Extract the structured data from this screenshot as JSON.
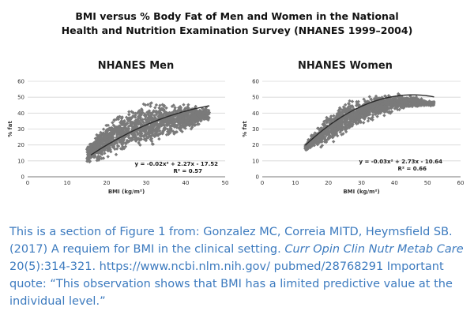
{
  "figure": {
    "title_line1": "BMI versus % Body Fat of Men and Women in the National",
    "title_line2": "Health and Nutrition Examination Survey (NHANES 1999–2004)"
  },
  "colors": {
    "scatter": "#7a7a7a",
    "curve": "#2a2a2a",
    "caption": "#3d7bbf"
  },
  "chart_data": [
    {
      "type": "scatter",
      "title": "NHANES Men",
      "xlabel": "BMI (kg/m²)",
      "ylabel": "% fat",
      "xlim": [
        0,
        50
      ],
      "ylim": [
        0,
        60
      ],
      "xticks": [
        "0",
        "10",
        "20",
        "30",
        "40",
        "50"
      ],
      "yticks": [
        "0",
        "10",
        "20",
        "30",
        "40",
        "50",
        "60"
      ],
      "point_cloud": {
        "x_range": [
          15,
          46
        ],
        "lower_envelope": [
          [
            15,
            10
          ],
          [
            20,
            15
          ],
          [
            25,
            21
          ],
          [
            30,
            24
          ],
          [
            35,
            28
          ],
          [
            40,
            32
          ],
          [
            45,
            36
          ]
        ],
        "upper_envelope": [
          [
            15,
            18
          ],
          [
            20,
            30
          ],
          [
            25,
            37
          ],
          [
            30,
            41
          ],
          [
            35,
            42
          ],
          [
            40,
            43
          ],
          [
            45,
            42
          ]
        ]
      },
      "fit": {
        "a": -0.02,
        "b": 2.27,
        "c": -17.52,
        "x_from": 16,
        "x_to": 46
      },
      "equation": "y = -0.02x² + 2.27x - 17.52",
      "r2": "R² = 0.57"
    },
    {
      "type": "scatter",
      "title": "NHANES Women",
      "xlabel": "BMI (kg/m²)",
      "ylabel": "% fat",
      "xlim": [
        0,
        60
      ],
      "ylim": [
        0,
        60
      ],
      "xticks": [
        "0",
        "10",
        "20",
        "30",
        "40",
        "50",
        "60"
      ],
      "yticks": [
        "0",
        "10",
        "20",
        "30",
        "40",
        "50",
        "60"
      ],
      "point_cloud": {
        "x_range": [
          13,
          52
        ],
        "lower_envelope": [
          [
            13,
            17
          ],
          [
            20,
            23
          ],
          [
            25,
            30
          ],
          [
            30,
            36
          ],
          [
            35,
            40
          ],
          [
            40,
            43
          ],
          [
            45,
            45
          ],
          [
            50,
            45
          ]
        ],
        "upper_envelope": [
          [
            13,
            20
          ],
          [
            20,
            36
          ],
          [
            25,
            43
          ],
          [
            30,
            46
          ],
          [
            35,
            49
          ],
          [
            40,
            50
          ],
          [
            45,
            50
          ],
          [
            50,
            47
          ]
        ]
      },
      "fit": {
        "a": -0.03,
        "b": 2.73,
        "c": -10.64,
        "x_from": 13,
        "x_to": 52
      },
      "equation": "y = -0.03x² + 2.73x - 10.64",
      "r2": "R² = 0.66"
    }
  ],
  "caption": {
    "text1": "This is a section of Figure 1 from: Gonzalez MC, Correia MITD, Heymsfield SB. (2017) A requiem for BMI in the clinical setting.",
    "journal": "Curr Opin Clin Nutr Metab Care",
    "text2": "20(5):314-321. https://www.ncbi.nlm.nih.gov/ pubmed/28768291 Important quote: “This observation shows that BMI has a limited predictive value at the individual level.”"
  }
}
